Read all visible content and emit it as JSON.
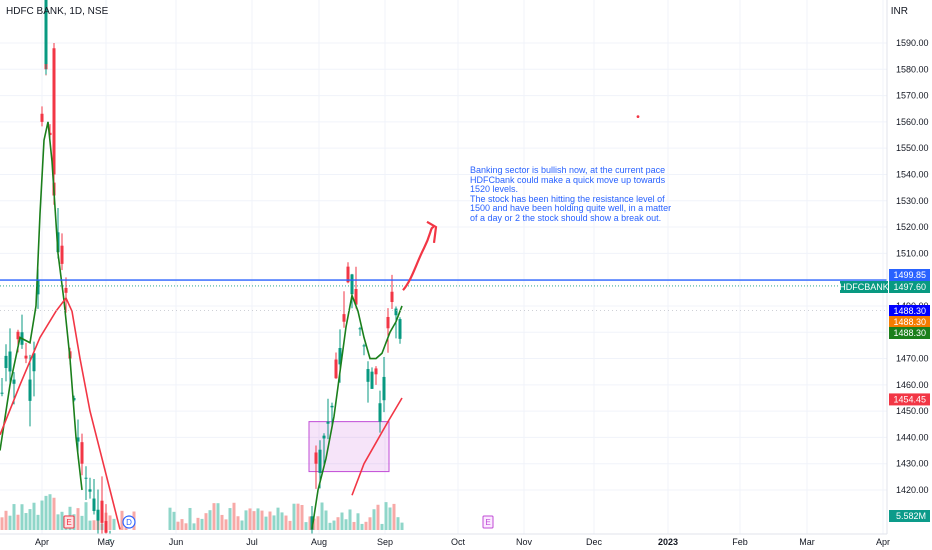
{
  "chart_data": {
    "type": "candlestick",
    "title": "HDFC BANK, 1D, NSE",
    "currency": "INR",
    "ylim": [
      1410,
      1600
    ],
    "yticks": [
      1420,
      1430,
      1440,
      1450,
      1460,
      1470,
      1480,
      1490,
      1500,
      1510,
      1520,
      1530,
      1540,
      1550,
      1560,
      1570,
      1580,
      1590
    ],
    "xticks": [
      "Apr",
      "May",
      "Jun",
      "Jul",
      "Aug",
      "Sep",
      "Oct",
      "Nov",
      "Dec",
      "2023",
      "Feb",
      "Mar",
      "Apr"
    ],
    "symbol_tag": "HDFCBANK",
    "price_tags": [
      {
        "value": "1499.85",
        "color": "#2962ff"
      },
      {
        "value": "1497.60",
        "color": "#089981"
      },
      {
        "value": "1488.30",
        "color": "#0000ff"
      },
      {
        "value": "1488.30",
        "color": "#f57c00"
      },
      {
        "value": "1488.30",
        "color": "#1b7f1b"
      },
      {
        "value": "1454.45",
        "color": "#f23645"
      }
    ],
    "volume_tag": "5.582M",
    "resistance_level": 1499.85,
    "note": "Banking sector is bullish now, at the current pace HDFCbank could make a quick move up towards 1520 levels.\nThe stock has been hitting the resistance level of 1500 and have been holding quite well, in a matter of a day or 2 the stock should show a break out.",
    "event_markers": [
      {
        "label": "E",
        "x_label": "Apr"
      },
      {
        "label": "D",
        "x_label": "May"
      },
      {
        "label": "E",
        "x_label": "Oct"
      }
    ],
    "colors": {
      "up": "#089981",
      "down": "#f23645",
      "sma_fast": "#1b7f1b",
      "sma_slow": "#f23645",
      "box": "#c04bd6"
    }
  }
}
